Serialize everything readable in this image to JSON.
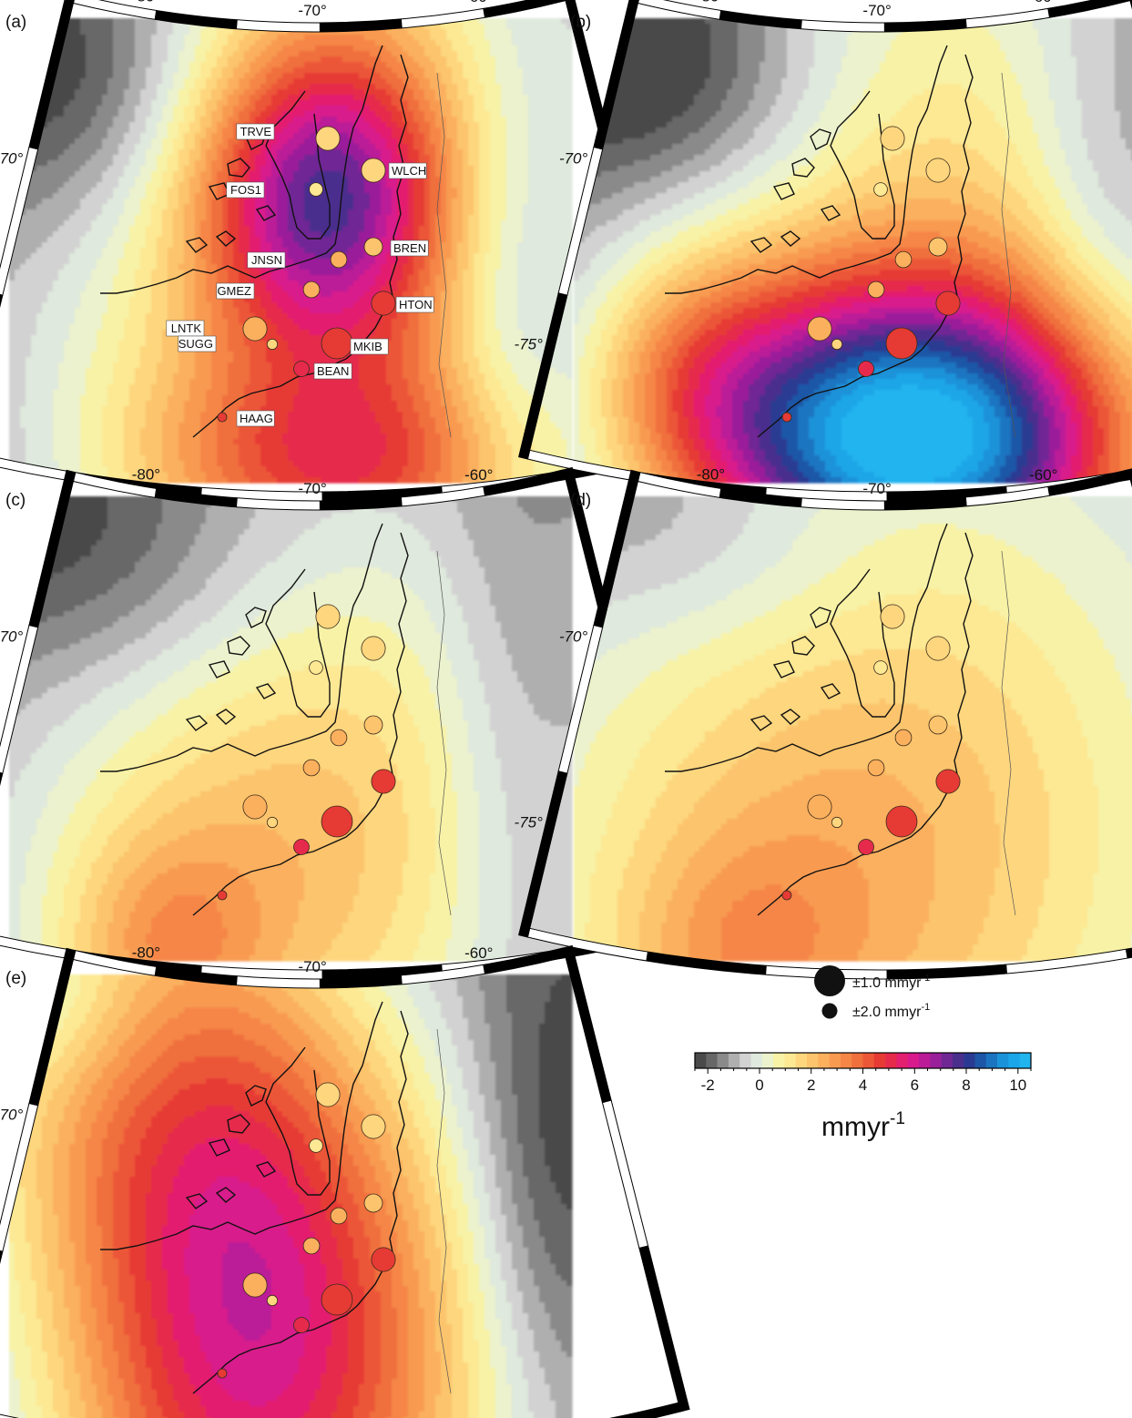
{
  "panels": [
    {
      "letter": "(a)",
      "show_labels": true,
      "field": "a"
    },
    {
      "letter": "(b)",
      "show_labels": false,
      "field": "b"
    },
    {
      "letter": "(c)",
      "show_labels": false,
      "field": "c"
    },
    {
      "letter": "(d)",
      "show_labels": false,
      "field": "d"
    },
    {
      "letter": "(e)",
      "show_labels": false,
      "field": "e"
    }
  ],
  "lon_ticks": [
    "-80°",
    "-70°",
    "-60°"
  ],
  "lat_ticks": [
    "-70°",
    "-75°"
  ],
  "sites": [
    {
      "name": "TRVE",
      "uplift": 2.2,
      "sigma": 1.3
    },
    {
      "name": "WLCH",
      "uplift": 2.0,
      "sigma": 1.3
    },
    {
      "name": "FOS1",
      "uplift": 1.7,
      "sigma": 2.3
    },
    {
      "name": "BREN",
      "uplift": 2.6,
      "sigma": 1.7
    },
    {
      "name": "JNSN",
      "uplift": 3.0,
      "sigma": 1.9
    },
    {
      "name": "GMEZ",
      "uplift": 3.4,
      "sigma": 1.9
    },
    {
      "name": "HTON",
      "uplift": 5.6,
      "sigma": 1.3
    },
    {
      "name": "LNTK",
      "uplift": 3.0,
      "sigma": 1.3
    },
    {
      "name": "SUGG",
      "uplift": 2.2,
      "sigma": 3.0
    },
    {
      "name": "MKIB",
      "uplift": 5.8,
      "sigma": 1.0
    },
    {
      "name": "BEAN",
      "uplift": 6.4,
      "sigma": 2.0
    },
    {
      "name": "HAAG",
      "uplift": 5.6,
      "sigma": 3.5
    }
  ],
  "legend": {
    "big_text": "±1.0 mmyr",
    "big_sup": "-1",
    "small_text": "±2.0 mmyr",
    "small_sup": "-1"
  },
  "colorbar": {
    "min": -2.5,
    "max": 10.5,
    "step": 0.5,
    "ticks": [
      "-2",
      "0",
      "2",
      "4",
      "6",
      "8",
      "10"
    ],
    "unit_base": "mmyr",
    "unit_sup": "-1",
    "colors": [
      "#4a4a4a",
      "#676767",
      "#8a8a8a",
      "#afafaf",
      "#d2d2d2",
      "#dfe9dd",
      "#ecf2cd",
      "#f7f2a6",
      "#fde893",
      "#fdd67e",
      "#fcc46c",
      "#fbb05e",
      "#f89b51",
      "#f58647",
      "#f0703d",
      "#ec5737",
      "#e63a35",
      "#e52a4c",
      "#e31f70",
      "#d81a8c",
      "#bb1b97",
      "#9a1f9a",
      "#702895",
      "#4a2f8d",
      "#2a3a92",
      "#1e56a7",
      "#1b74c0",
      "#1a92d9",
      "#1aa6e8",
      "#22b4ef"
    ]
  },
  "colors": {
    "coast": "#111111",
    "frame": "#000000",
    "site_stroke": "#3a2a1a"
  }
}
